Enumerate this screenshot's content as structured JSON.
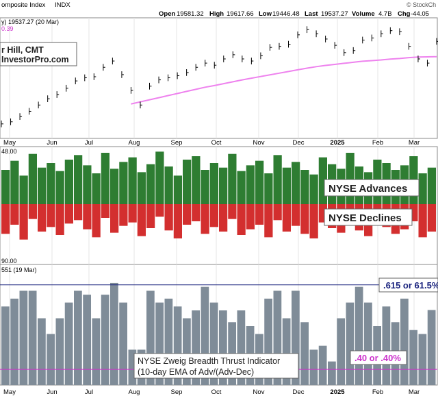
{
  "header": {
    "index_name": "omposite Index",
    "symbol": "INDX",
    "brand": "© StockCh",
    "open_label": "Open",
    "open_value": "19581.32",
    "high_label": "High",
    "high_value": "19617.66",
    "low_label": "Low",
    "low_value": "19446.48",
    "last_label": "Last",
    "last_value": "19537.27",
    "volume_label": "Volume",
    "volume_value": "4.7B",
    "chg_label": "Chg",
    "chg_value": "-44.05"
  },
  "price_panel": {
    "legend_line1": "y) 19537.27 (20 Mar)",
    "legend_line2": "0.39",
    "author_line1": "r Hill, CMT",
    "author_line2": "InvestorPro.com"
  },
  "month_axis": {
    "labels": [
      "May",
      "Jun",
      "Jul",
      "Aug",
      "Sep",
      "Oct",
      "Nov",
      "Dec",
      "2025",
      "Feb",
      "Mar"
    ]
  },
  "breadth_panel": {
    "top_label": "48.00",
    "bottom_label": "90.00",
    "advances_label": "NYSE Advances",
    "declines_label": "NYSE Declines"
  },
  "zweig_panel": {
    "legend": "551 (19 Mar)",
    "upper_label": ".615 or 61.5%",
    "lower_label": ".40 or .40%",
    "title_line1": "NYSE Zweig Breadth Thrust Indicator",
    "title_line2": "(10-day EMA of Adv/(Adv-Dec)"
  },
  "colors": {
    "advance": "#2e7d32",
    "decline": "#d32f2f",
    "zweig_bar": "#7f8c98",
    "ema_line": "#ee82ee",
    "upper_line": "#1a237e",
    "lower_line": "#cc33cc",
    "upper_label_text": "#1a237e",
    "lower_label_text": "#cc33cc",
    "panel_border": "#888888"
  },
  "chart_data": [
    {
      "type": "line",
      "x": [
        "Apr 26",
        "May 3",
        "May 10",
        "May 17",
        "May 24",
        "May 31",
        "Jun 7",
        "Jun 14",
        "Jun 21",
        "Jun 28",
        "Jul 5",
        "Jul 12",
        "Jul 19",
        "Jul 26",
        "Aug 2",
        "Aug 9",
        "Aug 16",
        "Aug 23",
        "Aug 30",
        "Sep 6",
        "Sep 13",
        "Sep 20",
        "Sep 27",
        "Oct 4",
        "Oct 11",
        "Oct 18",
        "Oct 25",
        "Nov 1",
        "Nov 8",
        "Nov 15",
        "Nov 22",
        "Nov 29",
        "Dec 6",
        "Dec 13",
        "Dec 20",
        "Dec 27",
        "Jan 3",
        "Jan 10",
        "Jan 17",
        "Jan 24",
        "Jan 31",
        "Feb 7",
        "Feb 14",
        "Feb 21",
        "Feb 28",
        "Mar 7",
        "Mar 14",
        "Mar 20"
      ],
      "series": [
        {
          "values": [
            15600,
            15700,
            15950,
            16200,
            16500,
            16800,
            17000,
            17300,
            17650,
            17800,
            17850,
            18300,
            18600,
            17950,
            17200,
            16500,
            17400,
            17700,
            17800,
            17900,
            18050,
            18300,
            18500,
            18400,
            18700,
            18900,
            18700,
            18600,
            18850,
            19250,
            19300,
            19400,
            19850,
            20100,
            19900,
            19650,
            19350,
            19000,
            19100,
            19600,
            19700,
            19900,
            20050,
            20000,
            19300,
            18700,
            18500,
            19537
          ]
        },
        {
          "values": [
            null,
            null,
            null,
            null,
            null,
            null,
            null,
            null,
            null,
            null,
            null,
            null,
            null,
            null,
            16550,
            16650,
            16750,
            16850,
            16950,
            17050,
            17150,
            17250,
            17350,
            17430,
            17520,
            17610,
            17700,
            17780,
            17860,
            17940,
            18020,
            18100,
            18180,
            18260,
            18330,
            18390,
            18440,
            18490,
            18540,
            18590,
            18620,
            18650,
            18690,
            18720,
            18760,
            18790,
            18800,
            18805
          ]
        }
      ]
    },
    {
      "type": "bar",
      "series": [
        {
          "name": "NYSE Advances",
          "values": [
            1500,
            1900,
            1250,
            2200,
            1600,
            1800,
            1450,
            1950,
            2150,
            1700,
            1350,
            2250,
            1550,
            1850,
            2050,
            1400,
            1750,
            2300,
            1650,
            1250,
            1950,
            2100,
            1500,
            1800,
            1600,
            2200,
            1450,
            1700,
            1900,
            1350,
            2150,
            1600,
            1850,
            1500,
            1300,
            2050,
            1750,
            1550,
            2250,
            1650,
            1400,
            1950,
            1800,
            1500,
            1700,
            2100,
            1350,
            1600
          ]
        },
        {
          "name": "NYSE Declines",
          "values": [
            1300,
            900,
            1550,
            650,
            1200,
            1000,
            1350,
            850,
            700,
            1100,
            1450,
            600,
            1250,
            950,
            800,
            1400,
            1050,
            550,
            1150,
            1500,
            900,
            750,
            1300,
            1000,
            1200,
            650,
            1350,
            1100,
            900,
            1450,
            700,
            1200,
            950,
            1300,
            1500,
            800,
            1050,
            1250,
            600,
            1150,
            1400,
            850,
            1000,
            1300,
            1100,
            750,
            1450,
            1200
          ]
        }
      ]
    },
    {
      "type": "bar",
      "values": [
        0.56,
        0.58,
        0.6,
        0.6,
        0.53,
        0.49,
        0.53,
        0.57,
        0.6,
        0.59,
        0.53,
        0.59,
        0.62,
        0.57,
        0.45,
        0.45,
        0.6,
        0.57,
        0.58,
        0.56,
        0.53,
        0.55,
        0.61,
        0.57,
        0.55,
        0.52,
        0.55,
        0.51,
        0.49,
        0.58,
        0.6,
        0.53,
        0.6,
        0.52,
        0.45,
        0.46,
        0.42,
        0.53,
        0.57,
        0.61,
        0.57,
        0.51,
        0.56,
        0.52,
        0.58,
        0.5,
        0.49,
        0.551
      ],
      "upper_threshold": 0.615,
      "lower_threshold": 0.4,
      "ylim": [
        0.36,
        0.66
      ]
    }
  ]
}
